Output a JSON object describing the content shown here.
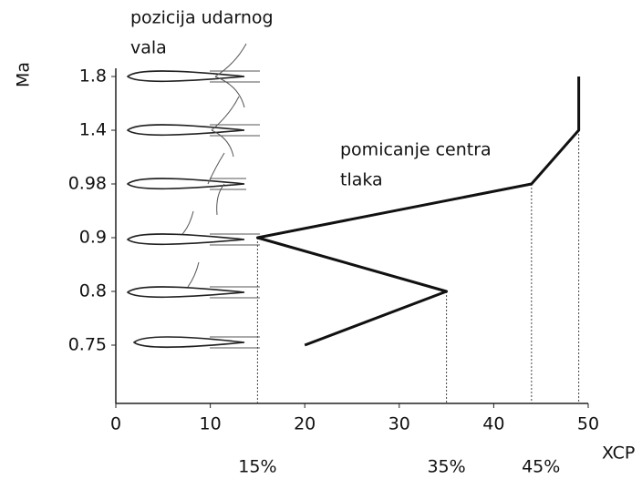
{
  "chart_data": {
    "type": "line",
    "y_label": "Ma",
    "x_label": "XCP",
    "categories": [
      "0.75",
      "0.8",
      "0.9",
      "0.98",
      "1.4",
      "1.8"
    ],
    "values": [
      20,
      35,
      15,
      44,
      49,
      49
    ],
    "color": "#111111",
    "xlim": [
      0,
      50
    ],
    "xticks": [
      0,
      10,
      20,
      30,
      40,
      50
    ],
    "x_markers": [
      {
        "value": 15,
        "label": "15%"
      },
      {
        "value": 35,
        "label": "35%"
      },
      {
        "value": 45,
        "label": "45%"
      }
    ],
    "annotations": [
      [
        "pozicija udarnog",
        "vala"
      ],
      [
        "pomicanje centra",
        "tlaka"
      ]
    ]
  }
}
